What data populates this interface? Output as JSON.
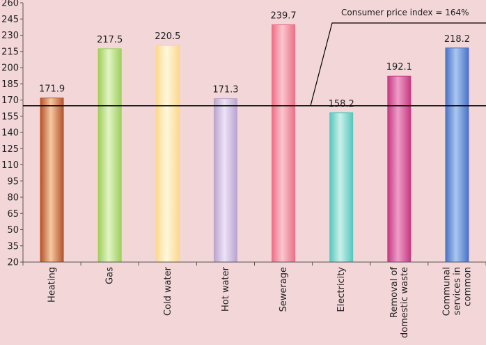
{
  "chart_data": {
    "type": "bar",
    "categories": [
      "Heating",
      "Gas",
      "Cold water",
      "Hot water",
      "Sewerage",
      "Electricity",
      "Removal of domestic waste",
      "Communal services in common"
    ],
    "category_lines": [
      [
        "Heating"
      ],
      [
        "Gas"
      ],
      [
        "Cold water"
      ],
      [
        "Hot water"
      ],
      [
        "Sewerage"
      ],
      [
        "Electricity"
      ],
      [
        "Removal of",
        "domestic waste"
      ],
      [
        "Communal",
        "services in",
        "common"
      ]
    ],
    "values": [
      171.9,
      217.5,
      220.5,
      171.3,
      239.7,
      158.2,
      192.1,
      218.2
    ],
    "value_labels": [
      "171.9",
      "217.5",
      "220.5",
      "171.3",
      "239.7",
      "158.2",
      "192.1",
      "218.2"
    ],
    "ylim": [
      20,
      260
    ],
    "yticks": [
      20,
      35,
      50,
      65,
      80,
      95,
      110,
      125,
      140,
      155,
      170,
      185,
      200,
      215,
      230,
      245,
      260
    ],
    "reference_line": {
      "value": 164,
      "label": "Consumer price index = 164%"
    },
    "colors": [
      "#b5542a",
      "#9fcf5c",
      "#fbd98e",
      "#b9a4d2",
      "#ee6f86",
      "#56c8bd",
      "#c43a84",
      "#4a72c8"
    ],
    "highlight_colors": [
      "#f6c8a2",
      "#e2f4c6",
      "#fff7de",
      "#ede3f6",
      "#fbc6cf",
      "#cbf0ea",
      "#ef9ec8",
      "#a9c7ef"
    ],
    "grid": false,
    "legend": "none"
  }
}
